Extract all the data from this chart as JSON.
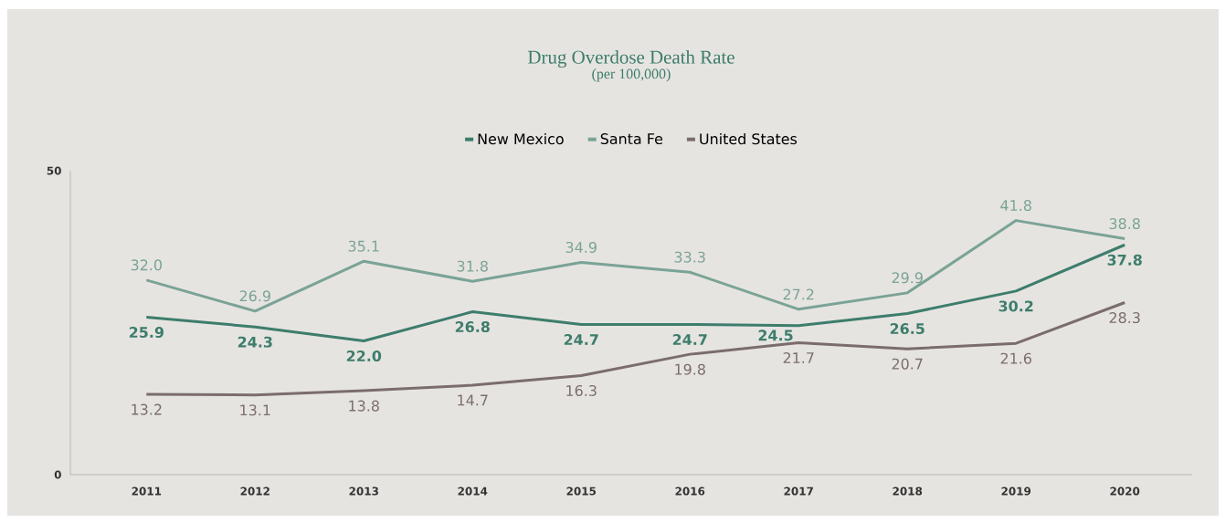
{
  "chart_data": {
    "type": "line",
    "title": "Drug Overdose Death Rate",
    "subtitle": "(per 100,000)",
    "categories": [
      "2011",
      "2012",
      "2013",
      "2014",
      "2015",
      "2016",
      "2017",
      "2018",
      "2019",
      "2020"
    ],
    "series": [
      {
        "name": "New Mexico",
        "color": "#3d7d6c",
        "values": [
          25.9,
          24.3,
          22.0,
          26.8,
          24.7,
          24.7,
          24.5,
          26.5,
          30.2,
          37.8
        ],
        "value_labels": [
          "25.9",
          "24.3",
          "22.0",
          "26.8",
          "24.7",
          "24.7",
          "24.5",
          "26.5",
          "30.2",
          "37.8"
        ]
      },
      {
        "name": "Santa Fe",
        "color": "#7aa396",
        "values": [
          32.0,
          26.9,
          35.1,
          31.8,
          34.9,
          33.3,
          27.2,
          29.9,
          41.8,
          38.8
        ],
        "value_labels": [
          "32.0",
          "26.9",
          "35.1",
          "31.8",
          "34.9",
          "33.3",
          "27.2",
          "29.9",
          "41.8",
          "38.8"
        ]
      },
      {
        "name": "United States",
        "color": "#7a6d6c",
        "values": [
          13.2,
          13.1,
          13.8,
          14.7,
          16.3,
          19.8,
          21.7,
          20.7,
          21.6,
          28.3
        ],
        "value_labels": [
          "13.2",
          "13.1",
          "13.8",
          "14.7",
          "16.3",
          "19.8",
          "21.7",
          "20.7",
          "21.6",
          "28.3"
        ]
      }
    ],
    "ylim": [
      0,
      50
    ],
    "yticks": [
      0,
      50
    ],
    "legend": "top",
    "marker": "none",
    "line_style": "solid",
    "grid": false
  }
}
